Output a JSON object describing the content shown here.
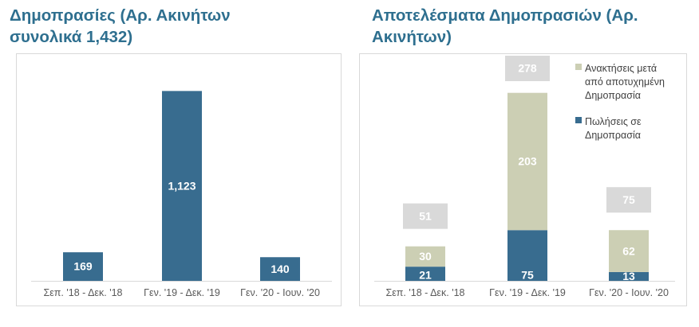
{
  "titles": {
    "left": "Δημοπρασίες (Αρ. Ακινήτων\nσυνολικά 1,432)",
    "right": "Αποτελέσματα Δημοπρασιών (Αρ.\nΑκινήτων)"
  },
  "colors": {
    "dark": "#386c8f",
    "light": "#cccfb4",
    "total_box": "#d9d9d9",
    "title": "#2e6f8f"
  },
  "chart_data": [
    {
      "type": "bar",
      "title": "Δημοπρασίες (Αρ. Ακινήτων συνολικά 1,432)",
      "categories": [
        "Σεπ. '18 - Δεκ. '18",
        "Γεν. '19 - Δεκ. '19",
        "Γεν. '20 - Ιουν. '20"
      ],
      "values": [
        169,
        1123,
        140
      ],
      "value_labels": [
        "169",
        "1,123",
        "140"
      ],
      "ylim": [
        0,
        1200
      ],
      "grid": false
    },
    {
      "type": "bar",
      "stacked": true,
      "title": "Αποτελέσματα Δημοπρασιών (Αρ. Ακινήτων)",
      "categories": [
        "Σεπ. '18 - Δεκ. '18",
        "Γεν. '19 - Δεκ. '19",
        "Γεν. '20 - Ιουν. '20"
      ],
      "series": [
        {
          "name": "Πωλήσεις σε Δημοπρασία",
          "values": [
            21,
            75,
            13
          ]
        },
        {
          "name": "Ανακτήσεις μετά από αποτυχημένη Δημοπρασία",
          "values": [
            30,
            203,
            62
          ]
        }
      ],
      "totals": [
        51,
        278,
        75
      ],
      "legend": {
        "position": "right",
        "items": [
          {
            "lines": [
              "Ανακτήσεις μετά",
              "από αποτυχημένη",
              "Δημοπρασία"
            ],
            "series": 1
          },
          {
            "lines": [
              "Πωλήσεις σε",
              "Δημοπρασία"
            ],
            "series": 0
          }
        ]
      },
      "ylim": [
        0,
        300
      ],
      "grid": false
    }
  ]
}
